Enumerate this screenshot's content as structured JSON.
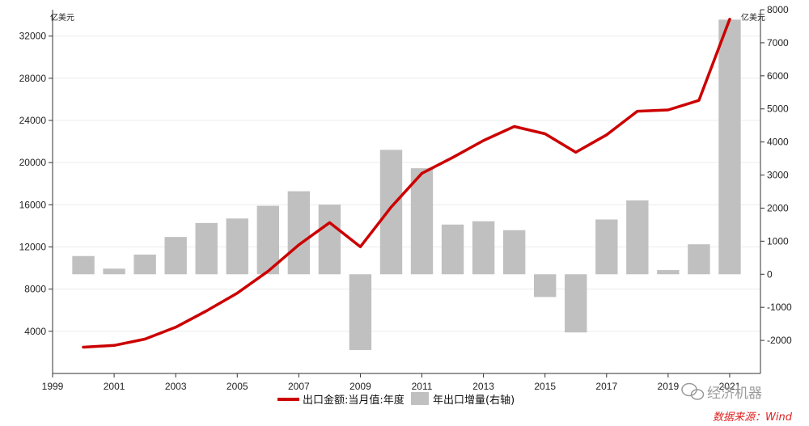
{
  "chart_data": {
    "type": "bar+line",
    "title": "",
    "y_left_unit": "亿美元",
    "y_right_unit": "亿美元",
    "x_ticks": [
      "1999",
      "2001",
      "2003",
      "2005",
      "2007",
      "2009",
      "2011",
      "2013",
      "2015",
      "2017",
      "2019",
      "2021"
    ],
    "y_left_ticks": [
      "4000",
      "8000",
      "12000",
      "16000",
      "20000",
      "24000",
      "28000",
      "32000"
    ],
    "y_right_ticks": [
      "-2000",
      "-1000",
      "0",
      "1000",
      "2000",
      "3000",
      "4000",
      "5000",
      "6000",
      "7000",
      "8000"
    ],
    "xlim": [
      1999,
      2022
    ],
    "ylim_left": [
      0,
      34500
    ],
    "ylim_right": [
      -3000,
      8000
    ],
    "grid": "horizontal",
    "x": [
      2000,
      2001,
      2002,
      2003,
      2004,
      2005,
      2006,
      2007,
      2008,
      2009,
      2010,
      2011,
      2012,
      2013,
      2014,
      2015,
      2016,
      2017,
      2018,
      2019,
      2020,
      2021
    ],
    "series": [
      {
        "name": "出口金额:当月值:年度",
        "kind": "line",
        "axis": "left",
        "color": "#cc0000",
        "values": [
          2492,
          2661,
          3256,
          4382,
          5933,
          7620,
          9690,
          12200,
          14307,
          12016,
          15778,
          18984,
          20487,
          22090,
          23423,
          22735,
          20976,
          22633,
          24867,
          24994,
          25900,
          33600
        ]
      },
      {
        "name": "年出口增量(右轴)",
        "kind": "bar",
        "axis": "right",
        "color": "#c0c0c0",
        "values": [
          550,
          170,
          595,
          1127,
          1551,
          1686,
          2070,
          2510,
          2106,
          -2290,
          3762,
          3206,
          1503,
          1603,
          1333,
          -688,
          -1759,
          1657,
          2234,
          127,
          906,
          7700
        ]
      }
    ],
    "legend_position": "bottom"
  },
  "watermark": "经济机器",
  "source_note": "数据来源：Wind"
}
